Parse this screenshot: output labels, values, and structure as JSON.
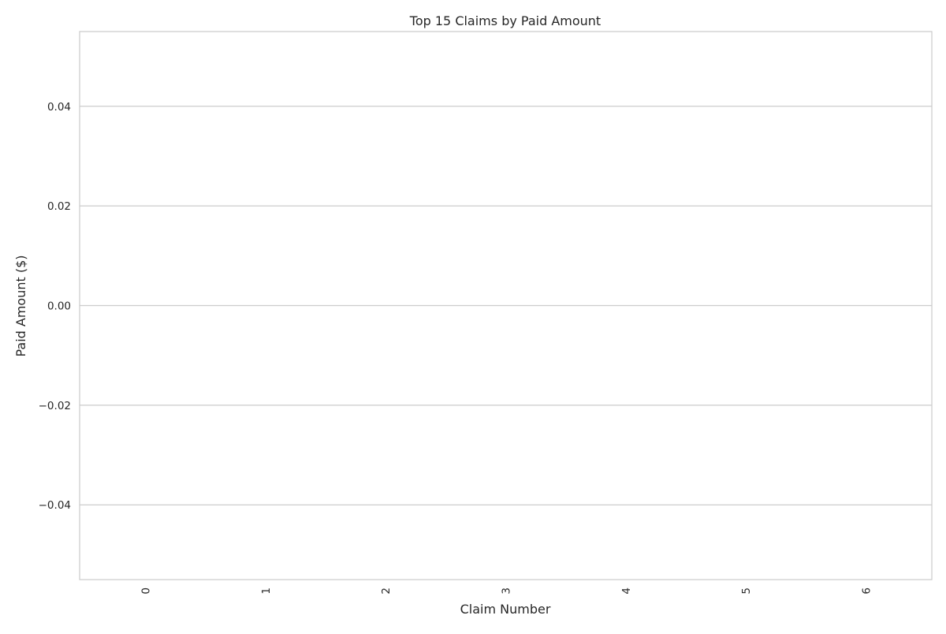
{
  "chart_data": {
    "type": "bar",
    "title": "Top 15 Claims by Paid Amount",
    "xlabel": "Claim Number",
    "ylabel": "Paid Amount ($)",
    "categories": [
      "0",
      "1",
      "2",
      "3",
      "4",
      "5",
      "6"
    ],
    "values": [
      0,
      0,
      0,
      0,
      0,
      0,
      0
    ],
    "ylim": [
      -0.055,
      0.055
    ],
    "yticks": [
      -0.04,
      -0.02,
      0.0,
      0.02,
      0.04
    ],
    "ytick_labels": [
      "−0.04",
      "−0.02",
      "0.00",
      "0.02",
      "0.04"
    ],
    "grid": "horizontal",
    "legend": "none",
    "colors": {
      "grid": "#cccccc",
      "spine": "#cccccc",
      "bar": "#4c72b0",
      "text": "#262626"
    }
  }
}
